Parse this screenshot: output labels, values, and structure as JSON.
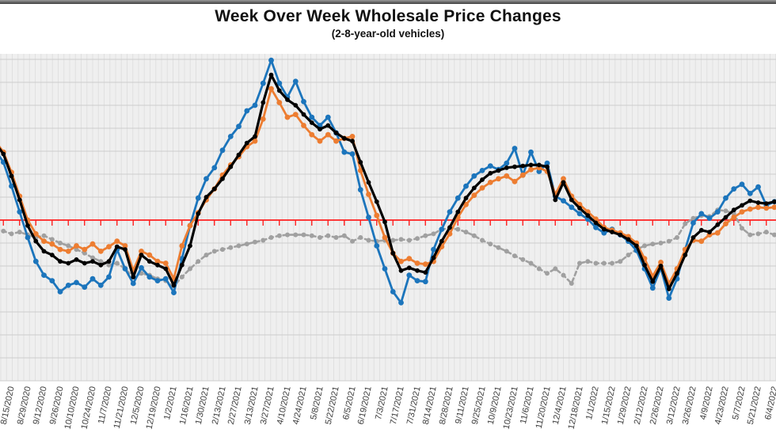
{
  "window": {
    "top_bar_color": "#4d4d4d"
  },
  "chart_data": {
    "type": "line",
    "title": "Week Over Week Wholesale Price Changes",
    "subtitle": "(2-8-year-old vehicles)",
    "plot_background": "#efefef",
    "zero_line_color": "#ff2020",
    "grid": "on",
    "y_axis": {
      "labels_visible": false,
      "zero": 0,
      "gridline_step": 0.25,
      "ylim": [
        -1.75,
        1.75
      ]
    },
    "x_axis": {
      "note": "weekly data points, tick labels every 2 weeks",
      "labels": [
        "8/15/2020",
        "8/29/2020",
        "9/12/2020",
        "9/26/2020",
        "10/10/2020",
        "10/24/2020",
        "11/7/2020",
        "11/21/2020",
        "12/5/2020",
        "12/19/2020",
        "1/2/2021",
        "1/16/2021",
        "1/30/2021",
        "2/13/2021",
        "2/27/2021",
        "3/13/2021",
        "3/27/2021",
        "4/10/2021",
        "4/24/2021",
        "5/8/2021",
        "5/22/2021",
        "6/5/2021",
        "6/19/2021",
        "7/3/2021",
        "7/17/2021",
        "7/31/2021",
        "8/14/2021",
        "8/28/2021",
        "9/11/2021",
        "9/25/2021",
        "10/9/2021",
        "10/23/2021",
        "11/6/2021",
        "11/20/2021",
        "12/4/2021",
        "12/18/2021",
        "1/1/2022",
        "1/15/2022",
        "1/29/2022",
        "2/12/2022",
        "2/26/2022",
        "3/12/2022",
        "3/26/2022",
        "4/9/2022",
        "4/23/2022",
        "5/7/2022",
        "5/21/2022",
        "6/4/2022"
      ]
    },
    "series": [
      {
        "name": "blue",
        "color": "#1c75bc",
        "style": "solid",
        "marker": "circle",
        "values": [
          0.76,
          0.63,
          0.37,
          0.09,
          -0.19,
          -0.45,
          -0.6,
          -0.66,
          -0.78,
          -0.71,
          -0.68,
          -0.73,
          -0.64,
          -0.71,
          -0.62,
          -0.32,
          -0.53,
          -0.69,
          -0.52,
          -0.62,
          -0.66,
          -0.64,
          -0.79,
          -0.42,
          -0.06,
          0.24,
          0.45,
          0.57,
          0.76,
          0.91,
          1.02,
          1.19,
          1.25,
          1.49,
          1.74,
          1.49,
          1.34,
          1.51,
          1.29,
          1.12,
          1.03,
          1.12,
          0.95,
          0.74,
          0.72,
          0.33,
          0.03,
          -0.28,
          -0.53,
          -0.78,
          -0.9,
          -0.6,
          -0.66,
          -0.67,
          -0.32,
          -0.1,
          0.09,
          0.24,
          0.37,
          0.48,
          0.54,
          0.59,
          0.55,
          0.62,
          0.78,
          0.49,
          0.74,
          0.53,
          0.62,
          0.26,
          0.21,
          0.14,
          0.07,
          0.01,
          -0.08,
          -0.14,
          -0.1,
          -0.16,
          -0.23,
          -0.33,
          -0.53,
          -0.74,
          -0.52,
          -0.85,
          -0.64,
          -0.32,
          -0.03,
          0.07,
          0.02,
          0.09,
          0.24,
          0.34,
          0.39,
          0.29,
          0.36,
          0.16,
          0.2
        ]
      },
      {
        "name": "orange",
        "color": "#ed7d31",
        "style": "solid",
        "marker": "circle",
        "values": [
          0.86,
          0.74,
          0.52,
          0.26,
          0.0,
          -0.15,
          -0.23,
          -0.26,
          -0.32,
          -0.34,
          -0.28,
          -0.32,
          -0.26,
          -0.34,
          -0.29,
          -0.23,
          -0.28,
          -0.55,
          -0.34,
          -0.38,
          -0.45,
          -0.47,
          -0.64,
          -0.28,
          -0.06,
          0.08,
          0.22,
          0.34,
          0.49,
          0.6,
          0.69,
          0.8,
          0.86,
          1.1,
          1.43,
          1.28,
          1.12,
          1.15,
          1.03,
          0.93,
          0.86,
          0.93,
          0.86,
          0.89,
          0.91,
          0.54,
          0.28,
          0.05,
          -0.19,
          -0.36,
          -0.45,
          -0.42,
          -0.47,
          -0.48,
          -0.45,
          -0.29,
          -0.15,
          0.03,
          0.17,
          0.27,
          0.35,
          0.41,
          0.45,
          0.48,
          0.42,
          0.49,
          0.55,
          0.57,
          0.53,
          0.28,
          0.45,
          0.26,
          0.17,
          0.09,
          0.01,
          -0.08,
          -0.11,
          -0.14,
          -0.18,
          -0.25,
          -0.42,
          -0.61,
          -0.46,
          -0.69,
          -0.53,
          -0.32,
          -0.22,
          -0.23,
          -0.16,
          -0.14,
          -0.04,
          0.03,
          0.09,
          0.12,
          0.14,
          0.13,
          0.14
        ]
      },
      {
        "name": "black",
        "color": "#000000",
        "style": "solid",
        "marker": "circle",
        "values": [
          0.84,
          0.72,
          0.48,
          0.22,
          -0.06,
          -0.23,
          -0.34,
          -0.38,
          -0.45,
          -0.47,
          -0.43,
          -0.47,
          -0.45,
          -0.49,
          -0.45,
          -0.29,
          -0.32,
          -0.62,
          -0.38,
          -0.45,
          -0.49,
          -0.53,
          -0.71,
          -0.49,
          -0.28,
          0.07,
          0.25,
          0.34,
          0.45,
          0.58,
          0.71,
          0.84,
          0.91,
          1.28,
          1.58,
          1.41,
          1.31,
          1.25,
          1.15,
          1.06,
          0.99,
          1.03,
          0.95,
          0.89,
          0.86,
          0.63,
          0.41,
          0.2,
          -0.02,
          -0.36,
          -0.55,
          -0.52,
          -0.55,
          -0.57,
          -0.41,
          -0.23,
          -0.08,
          0.09,
          0.24,
          0.35,
          0.44,
          0.51,
          0.54,
          0.57,
          0.58,
          0.59,
          0.6,
          0.6,
          0.58,
          0.22,
          0.41,
          0.22,
          0.13,
          0.05,
          -0.03,
          -0.1,
          -0.13,
          -0.16,
          -0.21,
          -0.28,
          -0.49,
          -0.67,
          -0.5,
          -0.75,
          -0.58,
          -0.38,
          -0.19,
          -0.11,
          -0.13,
          -0.05,
          0.03,
          0.11,
          0.16,
          0.21,
          0.19,
          0.18,
          0.2
        ]
      },
      {
        "name": "gray",
        "color": "#a0a0a0",
        "style": "dashed",
        "marker": "circle",
        "values": [
          -0.1,
          -0.12,
          -0.15,
          -0.13,
          -0.16,
          -0.19,
          -0.17,
          -0.21,
          -0.25,
          -0.28,
          -0.32,
          -0.36,
          -0.41,
          -0.45,
          -0.49,
          -0.47,
          -0.53,
          -0.62,
          -0.58,
          -0.6,
          -0.64,
          -0.66,
          -0.72,
          -0.62,
          -0.53,
          -0.45,
          -0.38,
          -0.34,
          -0.32,
          -0.3,
          -0.28,
          -0.26,
          -0.24,
          -0.22,
          -0.19,
          -0.17,
          -0.16,
          -0.16,
          -0.16,
          -0.17,
          -0.19,
          -0.17,
          -0.19,
          -0.17,
          -0.23,
          -0.19,
          -0.22,
          -0.23,
          -0.22,
          -0.22,
          -0.21,
          -0.22,
          -0.2,
          -0.17,
          -0.15,
          -0.1,
          -0.09,
          -0.1,
          -0.13,
          -0.17,
          -0.22,
          -0.26,
          -0.3,
          -0.34,
          -0.39,
          -0.43,
          -0.47,
          -0.53,
          -0.58,
          -0.53,
          -0.6,
          -0.69,
          -0.47,
          -0.45,
          -0.47,
          -0.47,
          -0.47,
          -0.45,
          -0.38,
          -0.32,
          -0.28,
          -0.26,
          -0.25,
          -0.23,
          -0.19,
          -0.04,
          0.02,
          0.05,
          0.04,
          0.11,
          0.1,
          0.07,
          -0.09,
          -0.16,
          -0.15,
          -0.13,
          -0.16
        ]
      }
    ]
  }
}
